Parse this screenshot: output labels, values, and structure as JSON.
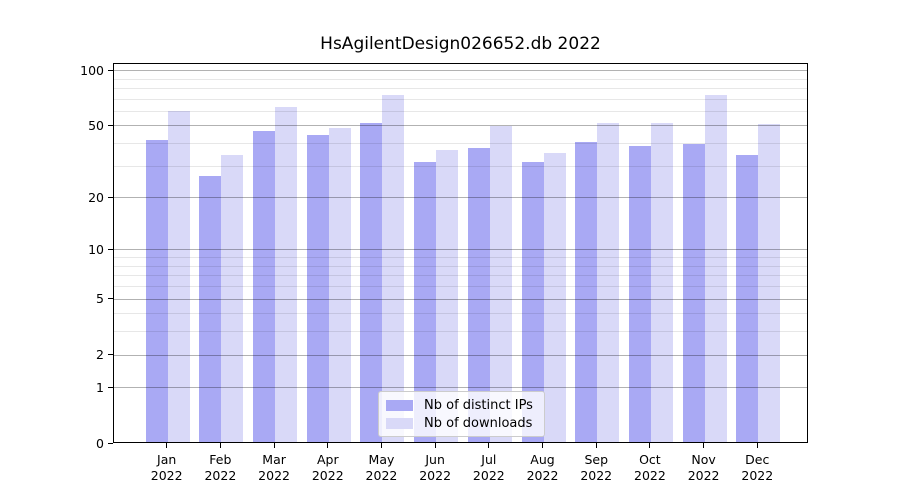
{
  "figure": {
    "title": "HsAgilentDesign026652.db 2022",
    "background": "#ffffff"
  },
  "chart_data": {
    "type": "bar",
    "title": "HsAgilentDesign026652.db 2022",
    "categories": [
      "Jan",
      "Feb",
      "Mar",
      "Apr",
      "May",
      "Jun",
      "Jul",
      "Aug",
      "Sep",
      "Oct",
      "Nov",
      "Dec"
    ],
    "x_year_label": "2022",
    "series": [
      {
        "name": "Nb of distinct IPs",
        "color": "#a9a9f4",
        "values": [
          41,
          26,
          46,
          44,
          51,
          31,
          37,
          31,
          40,
          38,
          39,
          34
        ]
      },
      {
        "name": "Nb of downloads",
        "color": "#d9d9f8",
        "values": [
          59,
          34,
          62,
          48,
          72,
          36,
          49,
          35,
          51,
          51,
          72,
          50
        ]
      }
    ],
    "yscale": "log1p",
    "ylim": [
      0,
      109
    ],
    "yticks_major": [
      0,
      1,
      2,
      5,
      10,
      20,
      50,
      100
    ],
    "yticks_minor": [
      3,
      4,
      6,
      7,
      8,
      9,
      30,
      40,
      60,
      70,
      80,
      90
    ],
    "grid": "on",
    "grid_above_bars": true,
    "legend_position": "lower center",
    "xlabel": "",
    "ylabel": ""
  },
  "legend": {
    "items": [
      {
        "label": "Nb of distinct IPs",
        "swatch": "#a9a9f4"
      },
      {
        "label": "Nb of downloads",
        "swatch": "#d9d9f8"
      }
    ]
  },
  "colors": {
    "major_grid": "#b3b3b3",
    "minor_grid": "#e7e7e7",
    "spine": "#000000",
    "tick_text": "#000000"
  }
}
